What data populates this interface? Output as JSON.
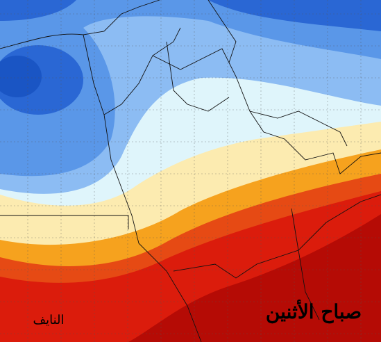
{
  "labels": {
    "day": "صباح الأثنين",
    "signature": "النايف"
  }
}
